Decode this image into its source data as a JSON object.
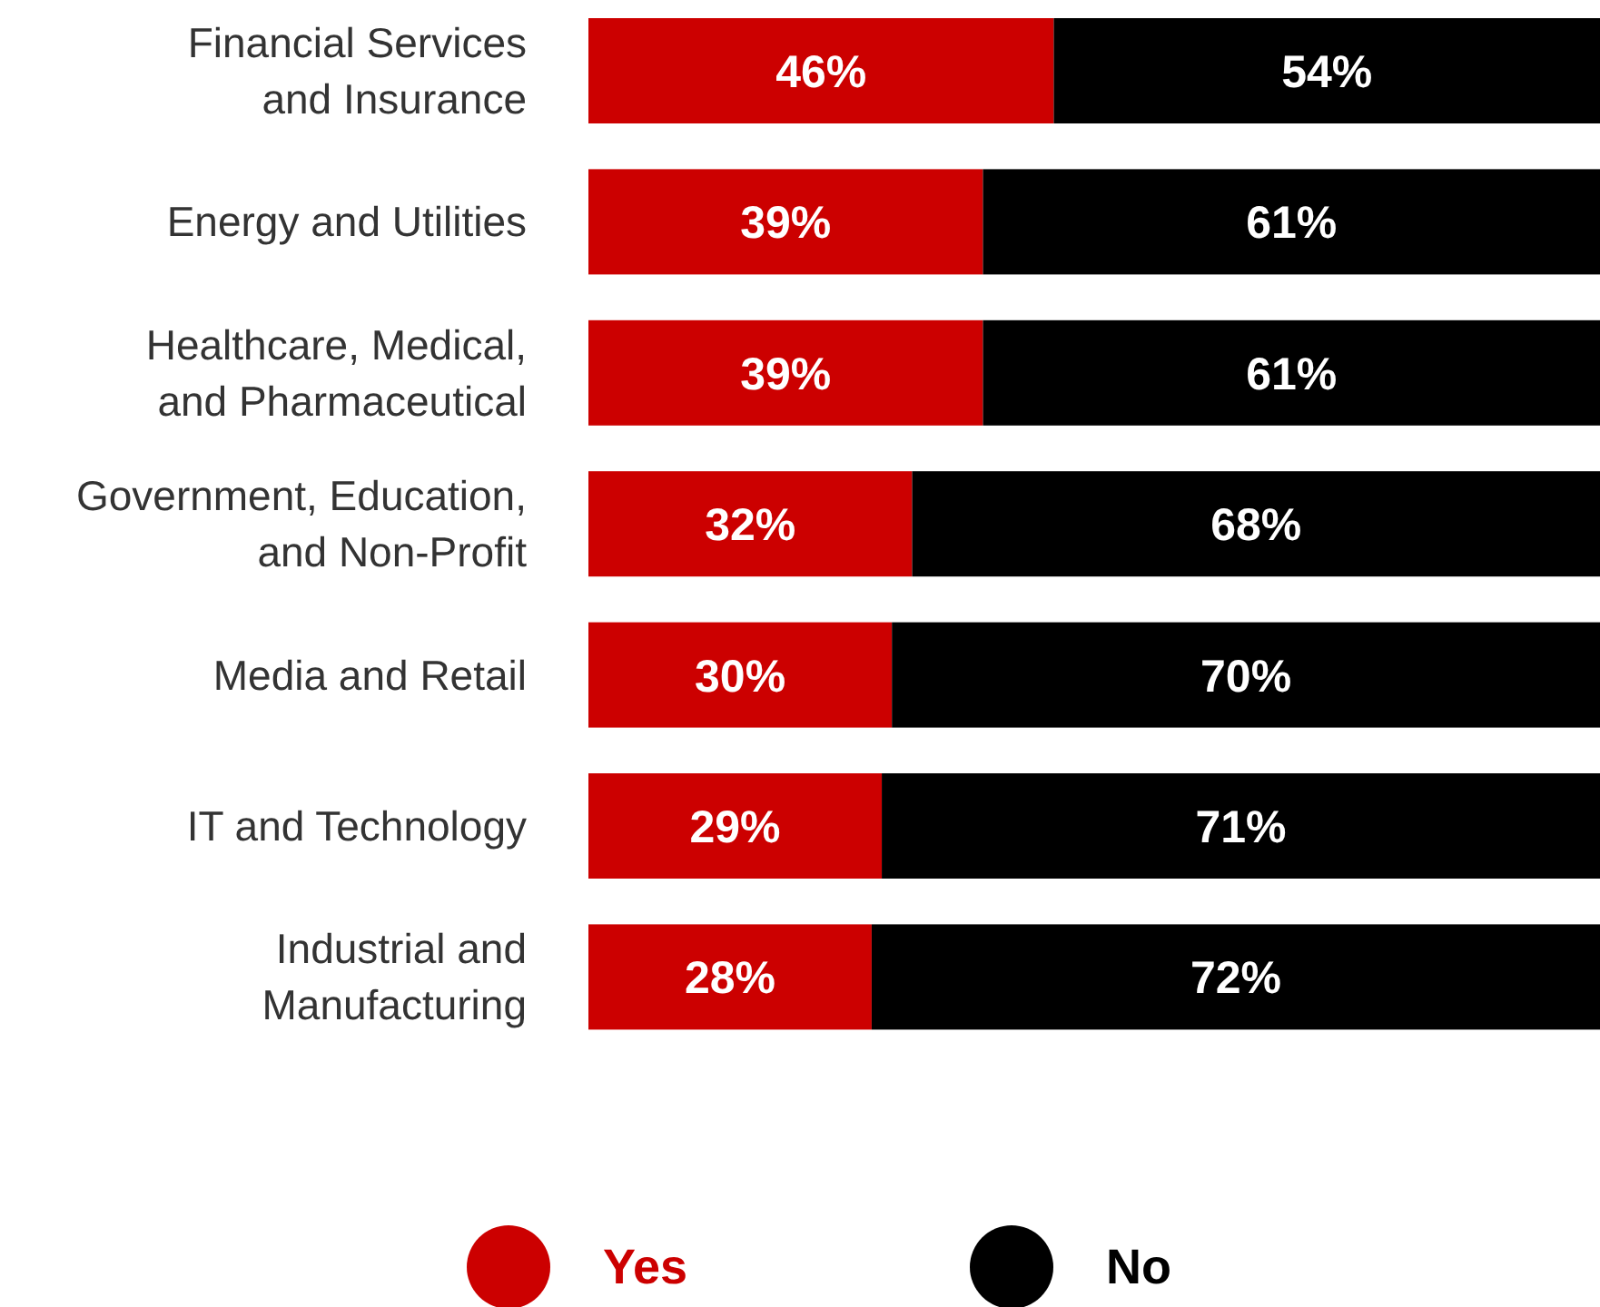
{
  "chart_data": {
    "type": "bar",
    "orientation": "horizontal",
    "stacked": true,
    "legend": "bottom",
    "categories": [
      "Financial Services and Insurance",
      "Energy and Utilities",
      "Healthcare, Medical, and Pharmaceutical",
      "Government, Education, and Non-Profit",
      "Media and Retail",
      "IT and Technology",
      "Industrial and Manufacturing"
    ],
    "series": [
      {
        "name": "Yes",
        "color": "#cc0000",
        "values": [
          46,
          39,
          39,
          32,
          30,
          29,
          28
        ],
        "value_labels": [
          "46%",
          "39%",
          "39%",
          "32%",
          "30%",
          "29%",
          "28%"
        ]
      },
      {
        "name": "No",
        "color": "#000000",
        "values": [
          54,
          61,
          61,
          68,
          70,
          71,
          72
        ],
        "value_labels": [
          "54%",
          "61%",
          "61%",
          "68%",
          "70%",
          "71%",
          "72%"
        ]
      }
    ]
  }
}
